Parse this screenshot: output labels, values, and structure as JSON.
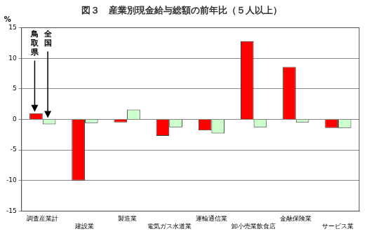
{
  "chart_data": {
    "type": "bar",
    "title": "図３　産業別現金給与総額の前年比（５人以上）",
    "y_label": "%",
    "categories": [
      "調査産業計",
      "建設業",
      "製造業",
      "電気ガス水道業",
      "運輸通信業",
      "卸小売業飲食店",
      "金融保険業",
      "サービス業"
    ],
    "series": [
      {
        "name": "鳥取県",
        "color": "#ff0000",
        "values": [
          1.0,
          -10.0,
          -0.5,
          -2.7,
          -1.8,
          12.8,
          8.6,
          -1.4
        ]
      },
      {
        "name": "全国",
        "color": "#ccffcc",
        "values": [
          -0.8,
          -0.6,
          1.6,
          -1.3,
          -2.3,
          -1.3,
          -0.5,
          -1.4
        ]
      }
    ],
    "ylim": [
      -15,
      15
    ],
    "yticks": [
      -15,
      -10,
      -5,
      0,
      5,
      10,
      15
    ],
    "grid": true
  }
}
